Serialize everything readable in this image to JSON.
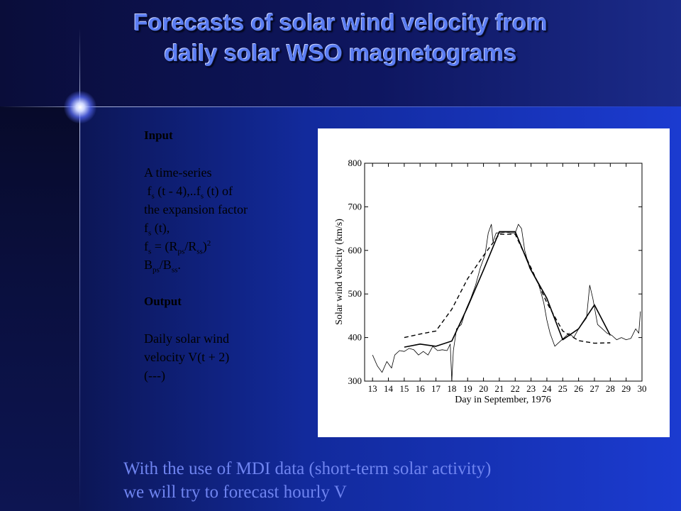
{
  "slide": {
    "title_line1": "Forecasts of solar wind velocity from",
    "title_line2": "daily solar WSO magnetograms",
    "input_heading": "Input",
    "input_line1": "A time-series",
    "fs_symbol": "f",
    "fs_sub": "s",
    "t_minus_4": "(t - 4),..",
    "t_of": "(t) of",
    "input_line3": "the expansion factor",
    "fs_t": "(t),",
    "equals_open": "= (R",
    "ps": "ps",
    "slash_R": "/R",
    "ss": "ss",
    "close_paren": ")",
    "exponent": "2",
    "B": "B",
    "slash_B": "/B",
    "period": ".",
    "output_heading": "Output",
    "output_line1": "Daily solar wind",
    "output_line2": "velocity V(t + 2)",
    "output_line3": "(---)",
    "note_line1": "With the use of MDI data (short-term solar activity)",
    "note_line2": "we will try to forecast hourly V"
  },
  "chart_data": {
    "type": "line",
    "xlabel": "Day in September, 1976",
    "ylabel": "Solar wind velocity (km/s)",
    "xlim": [
      12.5,
      30
    ],
    "ylim": [
      300,
      800
    ],
    "x_ticks": [
      13,
      14,
      15,
      16,
      17,
      18,
      19,
      20,
      21,
      22,
      23,
      24,
      25,
      26,
      27,
      28,
      29,
      30
    ],
    "y_ticks": [
      300,
      400,
      500,
      600,
      700,
      800
    ],
    "grid": false,
    "series": [
      {
        "style": "solid-thick",
        "x": [
          15.0,
          16.0,
          17.0,
          18.0,
          19.0,
          20.0,
          21.0,
          22.0,
          23.0,
          24.0,
          25.0,
          26.0,
          27.0,
          28.0
        ],
        "y": [
          378,
          385,
          380,
          392,
          470,
          555,
          643,
          643,
          555,
          490,
          395,
          420,
          475,
          405
        ]
      },
      {
        "style": "dashed",
        "x": [
          15.0,
          16.0,
          17.0,
          18.0,
          19.0,
          20.0,
          21.0,
          22.0,
          23.0,
          24.0,
          25.0,
          26.0,
          27.0,
          28.0
        ],
        "y": [
          400,
          408,
          415,
          465,
          535,
          588,
          637,
          637,
          560,
          480,
          415,
          393,
          387,
          388
        ]
      },
      {
        "style": "solid-thin",
        "x": [
          13.0,
          13.3,
          13.6,
          13.9,
          14.2,
          14.4,
          14.7,
          15.0,
          15.3,
          15.6,
          15.9,
          16.2,
          16.5,
          16.8,
          17.1,
          17.4,
          17.7,
          17.9,
          18.0,
          18.1,
          18.3,
          18.6,
          18.9,
          19.2,
          19.5,
          19.8,
          20.1,
          20.3,
          20.5,
          20.6,
          20.8,
          21.1,
          21.4,
          21.7,
          22.0,
          22.2,
          22.4,
          22.6,
          22.9,
          23.2,
          23.5,
          23.8,
          24.0,
          24.2,
          24.5,
          24.8,
          25.1,
          25.4,
          25.7,
          26.0,
          26.2,
          26.5,
          26.7,
          26.9,
          27.2,
          27.5,
          27.8,
          28.1,
          28.4,
          28.7,
          29.0,
          29.3,
          29.6,
          29.8,
          29.9
        ],
        "y": [
          360,
          335,
          320,
          345,
          330,
          360,
          370,
          368,
          375,
          372,
          360,
          368,
          360,
          380,
          370,
          372,
          370,
          385,
          300,
          370,
          420,
          430,
          465,
          490,
          520,
          560,
          590,
          640,
          660,
          620,
          640,
          640,
          642,
          640,
          640,
          660,
          650,
          600,
          560,
          540,
          520,
          480,
          440,
          410,
          380,
          390,
          400,
          410,
          400,
          420,
          430,
          445,
          520,
          490,
          430,
          420,
          410,
          405,
          395,
          400,
          395,
          398,
          420,
          410,
          460
        ]
      }
    ]
  }
}
